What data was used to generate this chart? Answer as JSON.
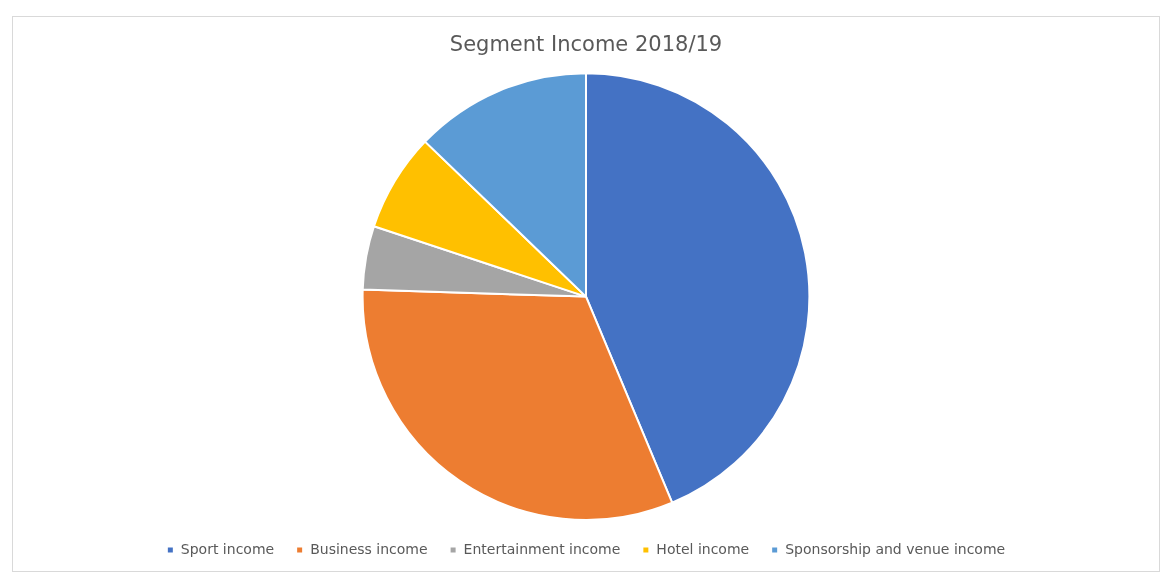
{
  "chart_data": {
    "type": "pie",
    "title": "Segment Income 2018/19",
    "categories": [
      "Sport income",
      "Business income",
      "Entertainment income",
      "Hotel income",
      "Sponsorship and venue income"
    ],
    "values": [
      43.7,
      31.8,
      4.6,
      7.1,
      12.8
    ],
    "colors": [
      "#4472c4",
      "#ed7d31",
      "#a5a5a5",
      "#ffc000",
      "#5b9bd5"
    ],
    "legend": "bottom"
  }
}
